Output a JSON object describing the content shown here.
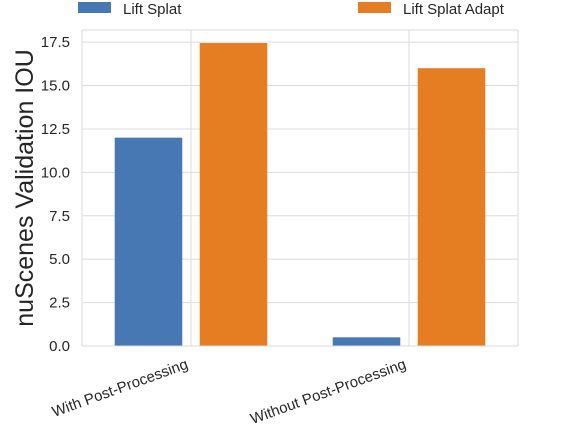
{
  "chart_data": {
    "type": "bar",
    "categories": [
      "With Post-Processing",
      "Without Post-Processing"
    ],
    "series": [
      {
        "name": "Lift Splat",
        "values": [
          12.0,
          0.5
        ],
        "color": "#4878b4"
      },
      {
        "name": "Lift Splat Adapt",
        "values": [
          17.45,
          16.0
        ],
        "color": "#e57e22"
      }
    ],
    "xlabel": "",
    "ylabel": "nuScenes Validation IOU",
    "ylim": [
      0,
      18.2
    ],
    "yticks": [
      0.0,
      2.5,
      5.0,
      7.5,
      10.0,
      12.5,
      15.0,
      17.5
    ],
    "ytick_labels": [
      "0.0",
      "2.5",
      "5.0",
      "7.5",
      "10.0",
      "12.5",
      "15.0",
      "17.5"
    ],
    "grid": true,
    "legend_position": "top"
  }
}
